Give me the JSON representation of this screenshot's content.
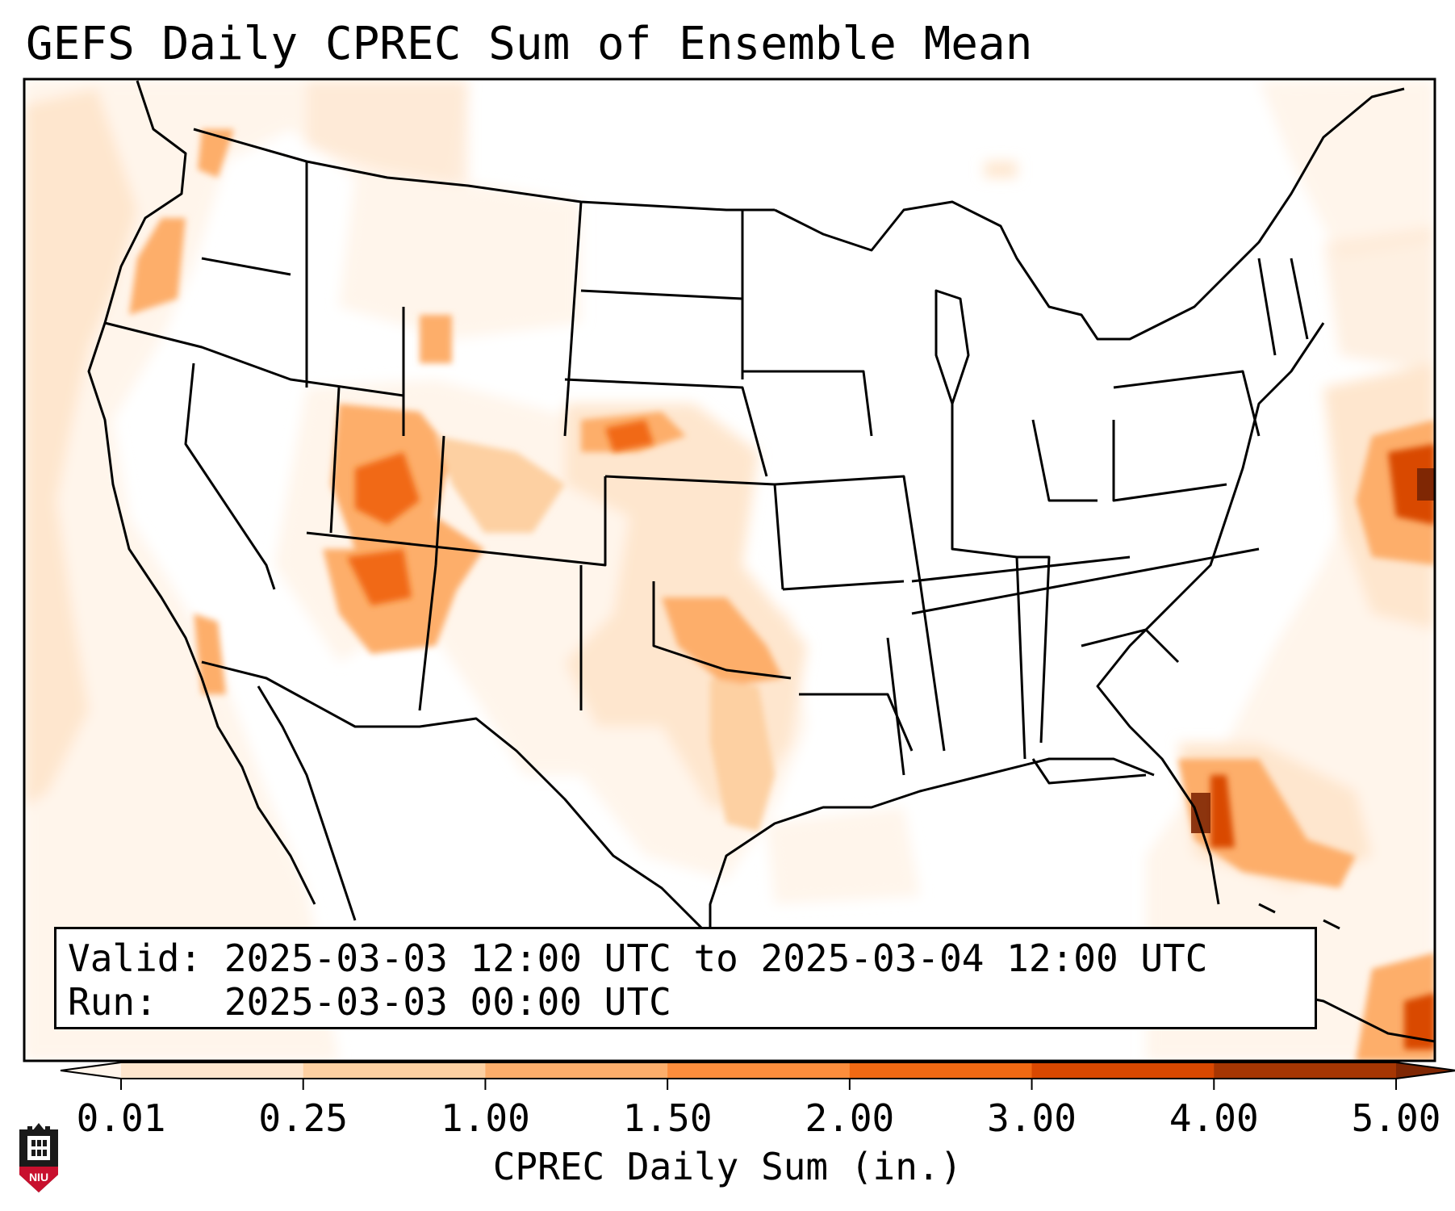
{
  "title": "GEFS Daily CPREC Sum of Ensemble Mean",
  "legend": {
    "valid_label": "Valid:",
    "valid_value": "2025-03-03 12:00 UTC to 2025-03-04 12:00 UTC",
    "run_label": "Run:",
    "run_value": "2025-03-03 00:00 UTC"
  },
  "colorbar": {
    "label": "CPREC Daily Sum (in.)",
    "ticks": [
      "0.01",
      "0.25",
      "1.00",
      "1.50",
      "2.00",
      "3.00",
      "4.00",
      "5.00"
    ],
    "colors": [
      "#fff5eb",
      "#fee6ce",
      "#fdd0a2",
      "#fdae6b",
      "#fd8d3c",
      "#f16913",
      "#d94801",
      "#a63603",
      "#7f2704"
    ]
  },
  "precip_regions": [
    {
      "name": "Pacific Northwest coast",
      "level": 2
    },
    {
      "name": "Utah / Colorado",
      "level": 4
    },
    {
      "name": "Arizona",
      "level": 4
    },
    {
      "name": "Nebraska / Kansas border",
      "level": 5
    },
    {
      "name": "Oklahoma / North Texas",
      "level": 4
    },
    {
      "name": "Texas Gulf coast",
      "level": 3
    },
    {
      "name": "Central Florida",
      "level": 7
    },
    {
      "name": "Atlantic offshore",
      "level": 7
    },
    {
      "name": "Bahamas / Cuba",
      "level": 5
    }
  ],
  "logo_text": "NIU"
}
